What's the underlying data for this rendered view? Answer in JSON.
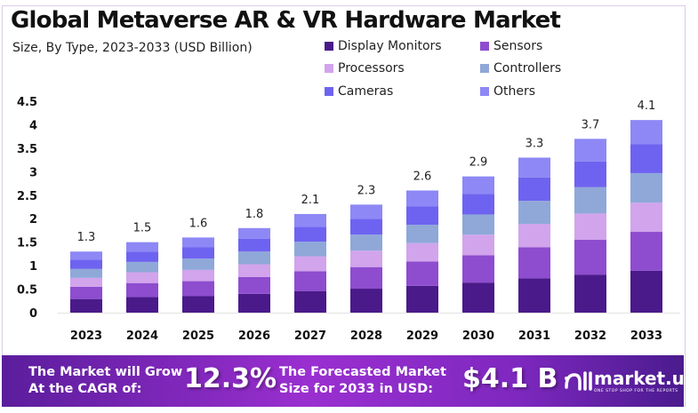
{
  "chart_data": {
    "type": "bar",
    "stacked": true,
    "title": "Global Metaverse AR & VR Hardware Market",
    "subtitle": "Size, By Type, 2023-2033 (USD Billion)",
    "categories": [
      "2023",
      "2024",
      "2025",
      "2026",
      "2027",
      "2028",
      "2029",
      "2030",
      "2031",
      "2032",
      "2033"
    ],
    "totals": [
      1.3,
      1.5,
      1.6,
      1.8,
      2.1,
      2.3,
      2.6,
      2.9,
      3.3,
      3.7,
      4.1
    ],
    "total_labels": [
      "1.3",
      "1.5",
      "1.6",
      "1.8",
      "2.1",
      "2.3",
      "2.6",
      "2.9",
      "3.3",
      "3.7",
      "4.1"
    ],
    "series": [
      {
        "name": "Display Monitors",
        "color": "#4a1a8a",
        "values": [
          0.29,
          0.33,
          0.35,
          0.4,
          0.46,
          0.51,
          0.57,
          0.64,
          0.73,
          0.81,
          0.89
        ]
      },
      {
        "name": "Sensors",
        "color": "#8e4ccf",
        "values": [
          0.26,
          0.3,
          0.32,
          0.36,
          0.42,
          0.46,
          0.52,
          0.58,
          0.66,
          0.74,
          0.83
        ]
      },
      {
        "name": "Processors",
        "color": "#d1a4ec",
        "values": [
          0.19,
          0.23,
          0.24,
          0.27,
          0.32,
          0.35,
          0.39,
          0.44,
          0.5,
          0.56,
          0.62
        ]
      },
      {
        "name": "Controllers",
        "color": "#8fa8d8",
        "values": [
          0.19,
          0.22,
          0.24,
          0.27,
          0.31,
          0.34,
          0.39,
          0.43,
          0.49,
          0.56,
          0.63
        ]
      },
      {
        "name": "Cameras",
        "color": "#6e63f0",
        "values": [
          0.2,
          0.22,
          0.24,
          0.27,
          0.32,
          0.34,
          0.39,
          0.44,
          0.5,
          0.55,
          0.62
        ]
      },
      {
        "name": "Others",
        "color": "#8d88f5",
        "values": [
          0.17,
          0.2,
          0.21,
          0.23,
          0.27,
          0.3,
          0.34,
          0.37,
          0.42,
          0.48,
          0.51
        ]
      }
    ],
    "yticks": [
      "0",
      "0.5",
      "1",
      "1.5",
      "2",
      "2.5",
      "3",
      "3.5",
      "4",
      "4.5"
    ],
    "ylim": [
      0,
      4.5
    ],
    "grid": false,
    "legend_position": "top"
  },
  "footer": {
    "cagr_text_1": "The Market will Grow",
    "cagr_text_2": "At the CAGR of:",
    "cagr_value": "12.3%",
    "forecast_text_1": "The Forecasted Market",
    "forecast_text_2": "Size for 2033 in USD:",
    "forecast_value": "$4.1 B",
    "logo_text": "market.us",
    "logo_tagline": "ONE STOP SHOP FOR THE REPORTS"
  }
}
